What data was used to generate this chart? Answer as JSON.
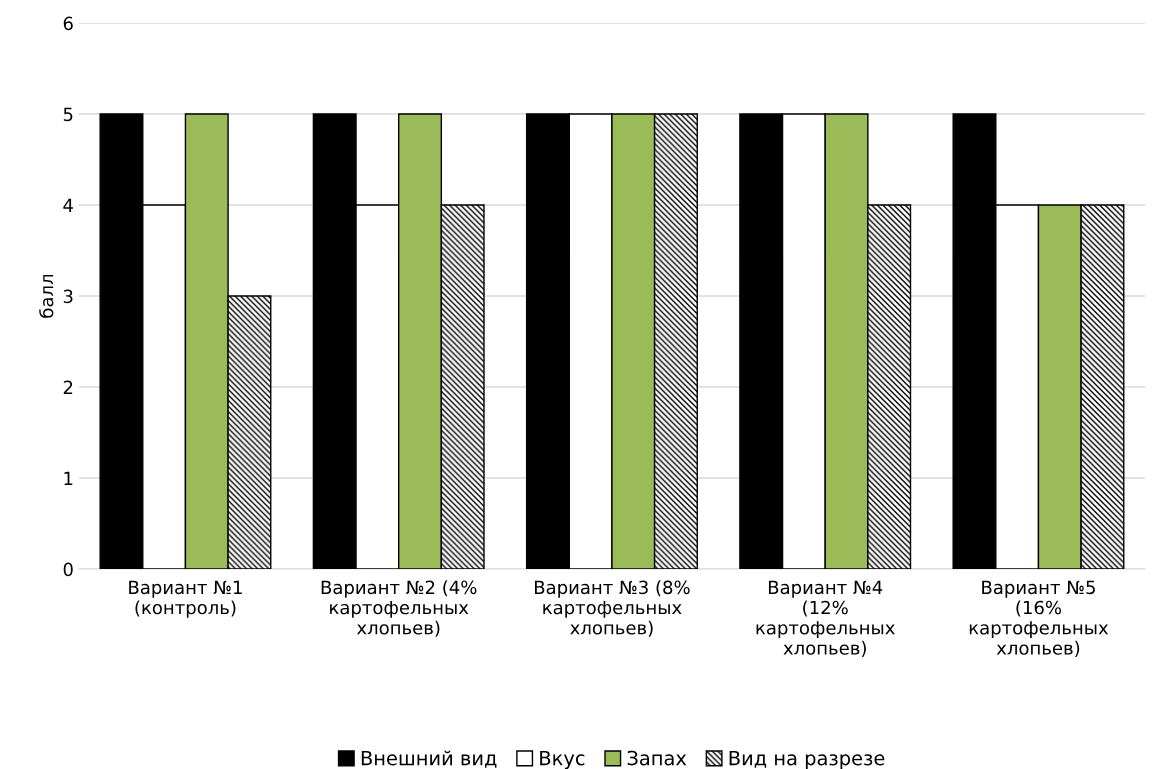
{
  "chart_data": {
    "type": "bar",
    "ylabel": "балл",
    "categories": [
      "Вариант №1\n(контроль)",
      "Вариант №2 (4%\nкартофельных\nхлопьев)",
      "Вариант №3 (8%\nкартофельных\nхлопьев)",
      "Вариант №4\n(12%\nкартофельных\nхлопьев)",
      "Вариант №5\n(16%\nкартофельных\nхлопьев)"
    ],
    "series": [
      {
        "name": "Внешний вид",
        "color": "#000000",
        "values": [
          5,
          5,
          5,
          5,
          5
        ]
      },
      {
        "name": "Вкус",
        "color": "#ffffff",
        "values": [
          4,
          4,
          5,
          5,
          4
        ]
      },
      {
        "name": "Запах",
        "color": "#9bbb59",
        "values": [
          5,
          5,
          5,
          5,
          4
        ]
      },
      {
        "name": "Вид на разрезе",
        "color": "#000000",
        "values": [
          3,
          4,
          5,
          4,
          4
        ]
      }
    ],
    "ylim": [
      0,
      6
    ],
    "yticks": [
      0,
      1,
      2,
      3,
      4,
      5,
      6
    ],
    "grid": "y",
    "legend": "bottom"
  }
}
